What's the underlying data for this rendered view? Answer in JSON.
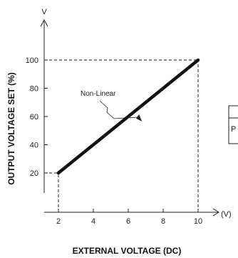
{
  "chart_data": {
    "type": "line",
    "title": "",
    "xlabel": "EXTERNAL VOLTAGE (DC)",
    "ylabel": "OUTPUT VOLTAGE SET (%)",
    "x_unit": "(V)",
    "y_unit": "V",
    "xlim": [
      0,
      12
    ],
    "ylim": [
      0,
      120
    ],
    "x_ticks": [
      2,
      4,
      6,
      8,
      10
    ],
    "y_ticks": [
      20,
      40,
      60,
      80,
      100
    ],
    "grid": false,
    "series": [
      {
        "x": [
          2,
          10
        ],
        "y": [
          20,
          100
        ]
      }
    ],
    "annotation": {
      "text": "Non-Linear",
      "x": 6.7,
      "y": 57
    },
    "reference_lines": [
      {
        "from": [
          0,
          100
        ],
        "to": [
          10,
          100
        ]
      },
      {
        "from": [
          10,
          0
        ],
        "to": [
          10,
          100
        ]
      },
      {
        "from": [
          0,
          20
        ],
        "to": [
          2,
          20
        ]
      },
      {
        "from": [
          2,
          0
        ],
        "to": [
          2,
          20
        ]
      }
    ]
  },
  "side_fragment": {
    "text": "P"
  }
}
